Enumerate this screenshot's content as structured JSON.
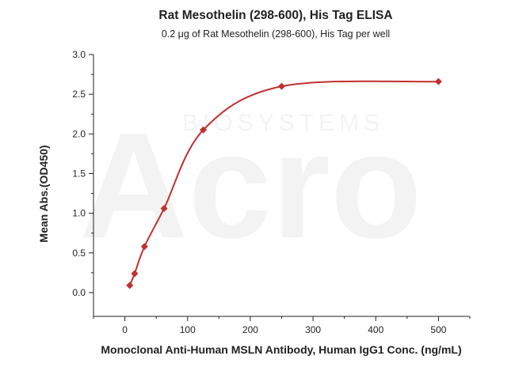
{
  "chart_data": {
    "type": "scatter",
    "title": "Rat Mesothelin (298-600), His Tag ELISA",
    "subtitle": "0.2 μg of Rat Mesothelin (298-600), His Tag per well",
    "xlabel": "Monoclonal Anti-Human MSLN Antibody, Human IgG1 Conc. (ng/mL)",
    "ylabel": "Mean Abs.(OD450)",
    "xlim": [
      -50,
      550
    ],
    "ylim": [
      -0.3,
      3.0
    ],
    "x_ticks": [
      0,
      100,
      200,
      300,
      400,
      500
    ],
    "y_ticks": [
      0.0,
      0.5,
      1.0,
      1.5,
      2.0,
      2.5,
      3.0
    ],
    "y_tick_labels": [
      "0.0",
      "0.5",
      "1.0",
      "1.5",
      "2.0",
      "2.5",
      "3.0"
    ],
    "series": [
      {
        "x": [
          7.8,
          15.6,
          31.25,
          62.5,
          125,
          250,
          500
        ],
        "y": [
          0.09,
          0.24,
          0.58,
          1.06,
          2.05,
          2.6,
          2.66
        ],
        "marker": "diamond",
        "color": "#c0302f",
        "fit_curve": true
      }
    ],
    "grid": false,
    "legend": "none"
  },
  "watermark": {
    "main": "Acro",
    "sub": "BIOSYSTEMS"
  }
}
